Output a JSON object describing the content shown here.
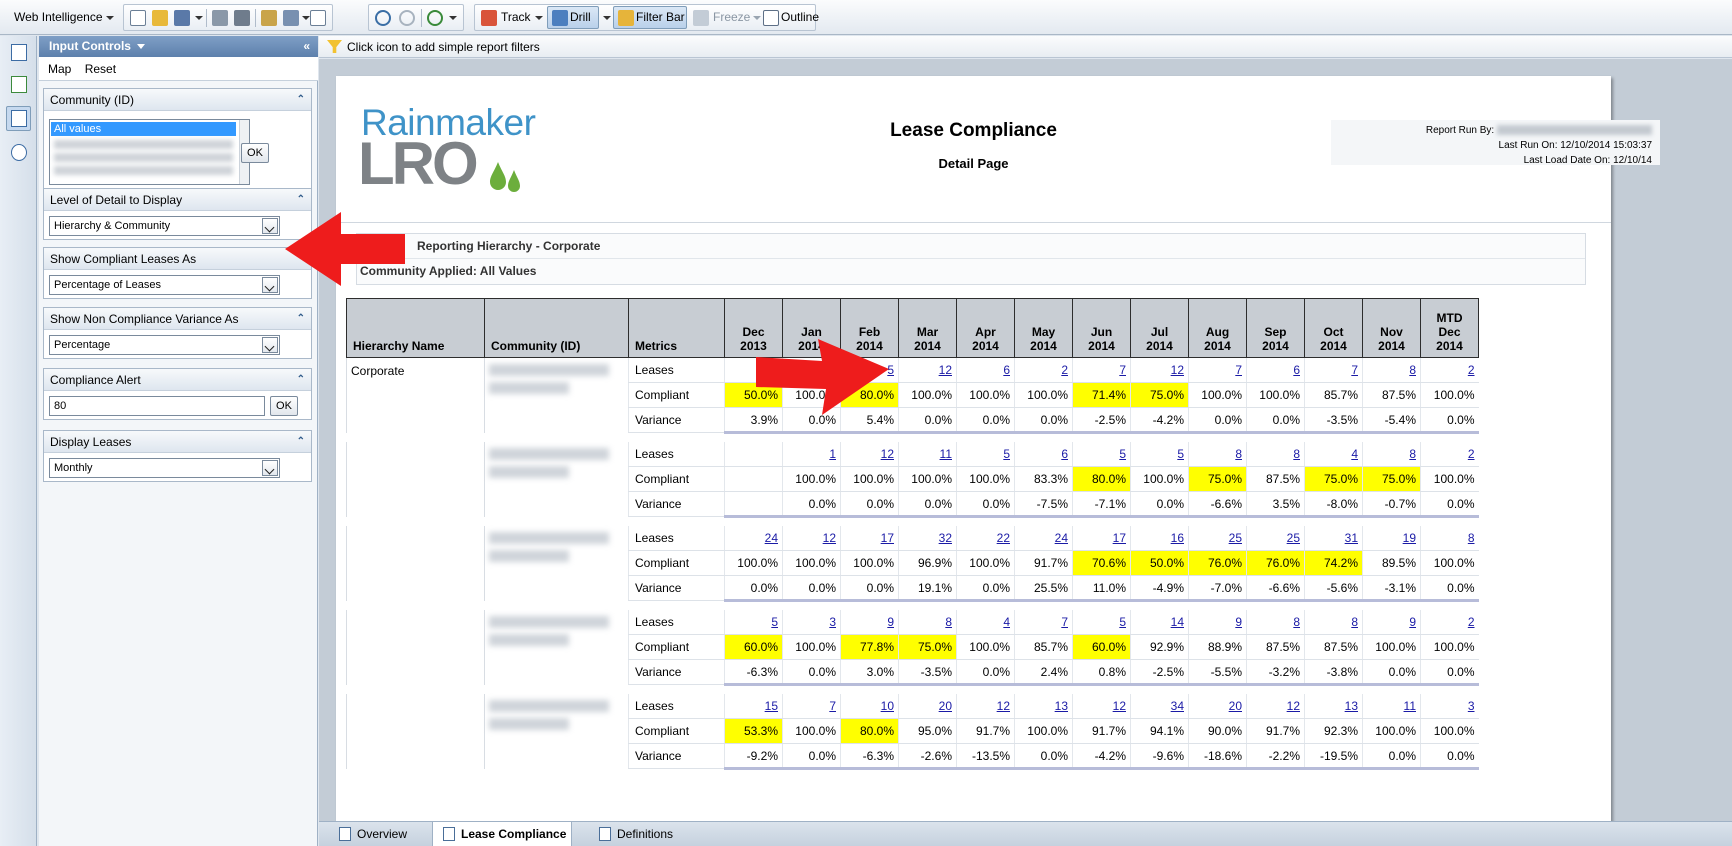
{
  "toolbar": {
    "app_menu": "Web Intelligence",
    "track": "Track",
    "drill": "Drill",
    "filter_bar": "Filter Bar",
    "freeze": "Freeze",
    "outline": "Outline"
  },
  "panel": {
    "title": "Input Controls",
    "map": "Map",
    "reset": "Reset",
    "controls": {
      "community": {
        "label": "Community (ID)",
        "selected": "All values",
        "ok": "OK"
      },
      "level_detail": {
        "label": "Level of Detail to Display",
        "value": "Hierarchy & Community"
      },
      "compliant_as": {
        "label": "Show Compliant Leases As",
        "value": "Percentage of Leases"
      },
      "noncompliance_as": {
        "label": "Show Non Compliance Variance As",
        "value": "Percentage"
      },
      "alert": {
        "label": "Compliance Alert",
        "value": "80",
        "ok": "OK"
      },
      "display_leases": {
        "label": "Display Leases",
        "value": "Monthly"
      }
    }
  },
  "filterbar": {
    "hint": "Click icon to add simple report filters"
  },
  "report": {
    "logo_top": "Rainmaker",
    "logo_bottom": "LRO",
    "title": "Lease Compliance",
    "subtitle": "Detail Page",
    "run_by_label": "Report Run By:",
    "last_run": "Last Run On: 12/10/2014 15:03:37",
    "last_load": "Last Load Date On: 12/10/14",
    "filter_hierarchy": "Reporting Hierarchy - Corporate",
    "filter_community": "Community Applied: All Values"
  },
  "table": {
    "headers": {
      "hierarchy": "Hierarchy Name",
      "community": "Community (ID)",
      "metrics": "Metrics"
    },
    "months": [
      [
        "Dec",
        "2013"
      ],
      [
        "Jan",
        "2014"
      ],
      [
        "Feb",
        "2014"
      ],
      [
        "Mar",
        "2014"
      ],
      [
        "Apr",
        "2014"
      ],
      [
        "May",
        "2014"
      ],
      [
        "Jun",
        "2014"
      ],
      [
        "Jul",
        "2014"
      ],
      [
        "Aug",
        "2014"
      ],
      [
        "Sep",
        "2014"
      ],
      [
        "Oct",
        "2014"
      ],
      [
        "Nov",
        "2014"
      ],
      [
        "MTD",
        "Dec",
        "2014"
      ]
    ],
    "metric_names": [
      "Leases",
      "Compliant",
      "Variance"
    ],
    "groups": [
      {
        "hierarchy": "Corporate",
        "leases": [
          "",
          "",
          "5",
          "12",
          "6",
          "2",
          "7",
          "12",
          "7",
          "6",
          "7",
          "8",
          "2"
        ],
        "compliant": [
          "50.0%",
          "100.0%",
          "80.0%",
          "100.0%",
          "100.0%",
          "100.0%",
          "71.4%",
          "75.0%",
          "100.0%",
          "100.0%",
          "85.7%",
          "87.5%",
          "100.0%"
        ],
        "variance": [
          "3.9%",
          "0.0%",
          "5.4%",
          "0.0%",
          "0.0%",
          "0.0%",
          "-2.5%",
          "-4.2%",
          "0.0%",
          "0.0%",
          "-3.5%",
          "-5.4%",
          "0.0%"
        ],
        "highlight": [
          0,
          2,
          6,
          7
        ]
      },
      {
        "hierarchy": "",
        "leases": [
          "",
          "1",
          "12",
          "11",
          "5",
          "6",
          "5",
          "5",
          "8",
          "8",
          "4",
          "8",
          "2"
        ],
        "compliant": [
          "",
          "100.0%",
          "100.0%",
          "100.0%",
          "100.0%",
          "83.3%",
          "80.0%",
          "100.0%",
          "75.0%",
          "87.5%",
          "75.0%",
          "75.0%",
          "100.0%"
        ],
        "variance": [
          "",
          "0.0%",
          "0.0%",
          "0.0%",
          "0.0%",
          "-7.5%",
          "-7.1%",
          "0.0%",
          "-6.6%",
          "3.5%",
          "-8.0%",
          "-0.7%",
          "0.0%"
        ],
        "highlight": [
          6,
          8,
          10,
          11
        ]
      },
      {
        "hierarchy": "",
        "leases": [
          "24",
          "12",
          "17",
          "32",
          "22",
          "24",
          "17",
          "16",
          "25",
          "25",
          "31",
          "19",
          "8"
        ],
        "compliant": [
          "100.0%",
          "100.0%",
          "100.0%",
          "96.9%",
          "100.0%",
          "91.7%",
          "70.6%",
          "50.0%",
          "76.0%",
          "76.0%",
          "74.2%",
          "89.5%",
          "100.0%"
        ],
        "variance": [
          "0.0%",
          "0.0%",
          "0.0%",
          "19.1%",
          "0.0%",
          "25.5%",
          "11.0%",
          "-4.9%",
          "-7.0%",
          "-6.6%",
          "-5.6%",
          "-3.1%",
          "0.0%"
        ],
        "highlight": [
          6,
          7,
          8,
          9,
          10
        ]
      },
      {
        "hierarchy": "",
        "leases": [
          "5",
          "3",
          "9",
          "8",
          "4",
          "7",
          "5",
          "14",
          "9",
          "8",
          "8",
          "9",
          "2"
        ],
        "compliant": [
          "60.0%",
          "100.0%",
          "77.8%",
          "75.0%",
          "100.0%",
          "85.7%",
          "60.0%",
          "92.9%",
          "88.9%",
          "87.5%",
          "87.5%",
          "100.0%",
          "100.0%"
        ],
        "variance": [
          "-6.3%",
          "0.0%",
          "3.0%",
          "-3.5%",
          "0.0%",
          "2.4%",
          "0.8%",
          "-2.5%",
          "-5.5%",
          "-3.2%",
          "-3.8%",
          "0.0%",
          "0.0%"
        ],
        "highlight": [
          0,
          2,
          3,
          6
        ]
      },
      {
        "hierarchy": "",
        "leases": [
          "15",
          "7",
          "10",
          "20",
          "12",
          "13",
          "12",
          "34",
          "20",
          "12",
          "13",
          "11",
          "3"
        ],
        "compliant": [
          "53.3%",
          "100.0%",
          "80.0%",
          "95.0%",
          "91.7%",
          "100.0%",
          "91.7%",
          "94.1%",
          "90.0%",
          "91.7%",
          "92.3%",
          "100.0%",
          "100.0%"
        ],
        "variance": [
          "-9.2%",
          "0.0%",
          "-6.3%",
          "-2.6%",
          "-13.5%",
          "0.0%",
          "-4.2%",
          "-9.6%",
          "-18.6%",
          "-2.2%",
          "-19.5%",
          "0.0%",
          "0.0%"
        ],
        "highlight": [
          0,
          2
        ]
      }
    ]
  },
  "tabs": [
    "Overview",
    "Lease Compliance",
    "Definitions"
  ],
  "colors": {
    "highlight": "#ffff00",
    "arrow": "#ee1c1c",
    "panel_header": "#6a8cb6",
    "link": "#1a1aa6"
  }
}
